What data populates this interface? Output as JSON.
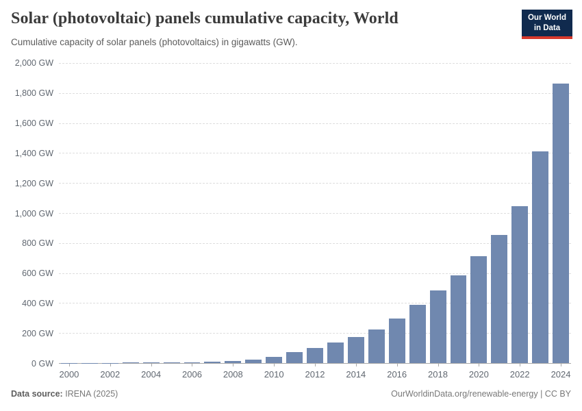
{
  "header": {
    "title": "Solar (photovoltaic) panels cumulative capacity, World",
    "subtitle": "Cumulative capacity of solar panels (photovoltaics) in gigawatts (GW).",
    "logo": {
      "line1": "Our World",
      "line2": "in Data"
    }
  },
  "chart_data": {
    "type": "bar",
    "title": "Solar (photovoltaic) panels cumulative capacity, World",
    "ylabel": "",
    "xlabel": "",
    "unit": "GW",
    "ytick_suffix": " GW",
    "ylim": [
      0,
      2000
    ],
    "ytick_step": 200,
    "grid": true,
    "legend": "none",
    "categories": [
      2000,
      2001,
      2002,
      2003,
      2004,
      2005,
      2006,
      2007,
      2008,
      2009,
      2010,
      2011,
      2012,
      2013,
      2014,
      2015,
      2016,
      2017,
      2018,
      2019,
      2020,
      2021,
      2022,
      2023,
      2024
    ],
    "values": [
      1.2,
      1.5,
      2.0,
      2.6,
      3.7,
      5.1,
      6.7,
      9.2,
      15.9,
      23.2,
      40.1,
      73.8,
      102.2,
      138.1,
      175.1,
      222.4,
      295.6,
      388.8,
      482.1,
      585.4,
      714.1,
      855.8,
      1046.6,
      1411.6,
      1865.1
    ],
    "xtick_years": [
      2000,
      2002,
      2004,
      2006,
      2008,
      2010,
      2012,
      2014,
      2016,
      2018,
      2020,
      2022,
      2024
    ],
    "colors": {
      "bar": "#7088af",
      "gridline": "#dddddd",
      "axis_line": "#a8a8a8",
      "tick_label": "#606770"
    }
  },
  "footer": {
    "source_label": "Data source:",
    "source_value": "IRENA (2025)",
    "attribution": "OurWorldinData.org/renewable-energy | CC BY"
  }
}
